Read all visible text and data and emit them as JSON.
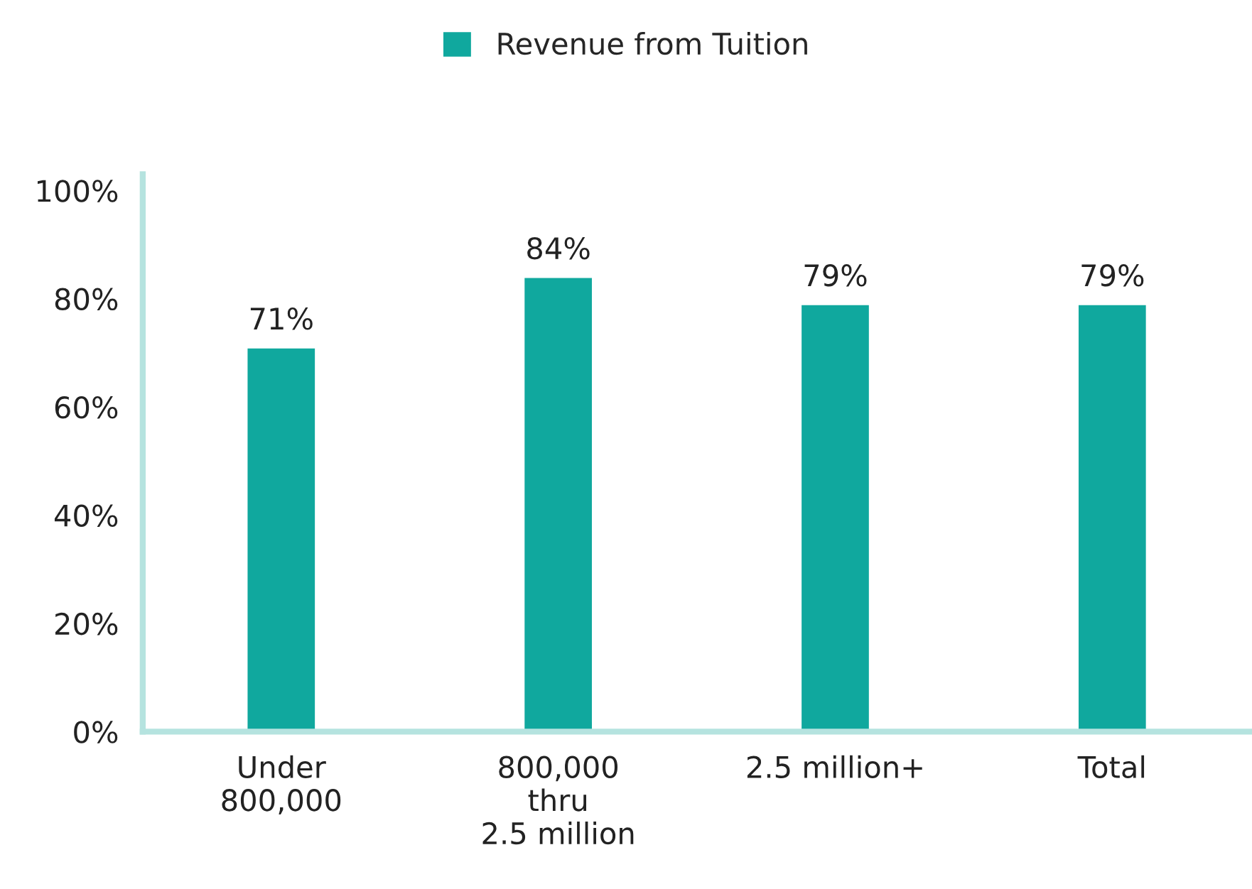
{
  "chart_data": {
    "type": "bar",
    "categories": [
      "Under\n800,000",
      "800,000\nthru\n2.5 million",
      "2.5 million+",
      "Total"
    ],
    "series": [
      {
        "name": "Revenue from Tuition",
        "color": "#10a89e",
        "values": [
          71,
          84,
          79,
          79
        ]
      }
    ],
    "value_labels": [
      "71%",
      "84%",
      "79%",
      "79%"
    ],
    "ylim": [
      0,
      103
    ],
    "yticks": [
      {
        "value": 0,
        "label": "0%"
      },
      {
        "value": 20,
        "label": "20%"
      },
      {
        "value": 40,
        "label": "40%"
      },
      {
        "value": 60,
        "label": "60%"
      },
      {
        "value": 80,
        "label": "80%"
      },
      {
        "value": 100,
        "label": "100%"
      }
    ],
    "grid": false,
    "legend": "top"
  }
}
